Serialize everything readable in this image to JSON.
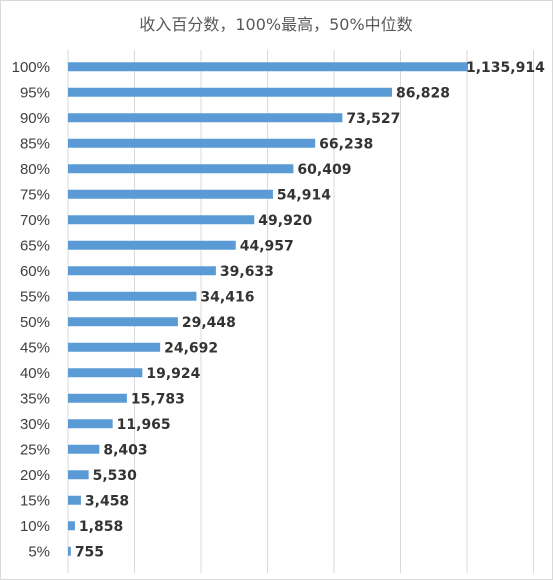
{
  "chart_data": {
    "type": "bar",
    "orientation": "horizontal",
    "title": "收入百分数，100%最高，50%中位数",
    "xlabel": "",
    "ylabel": "",
    "categories": [
      "5%",
      "10%",
      "15%",
      "20%",
      "25%",
      "30%",
      "35%",
      "40%",
      "45%",
      "50%",
      "55%",
      "60%",
      "65%",
      "70%",
      "75%",
      "80%",
      "85%",
      "90%",
      "95%",
      "100%"
    ],
    "values": [
      755,
      1858,
      3458,
      5530,
      8403,
      11965,
      15783,
      19924,
      24692,
      29448,
      34416,
      39633,
      44957,
      49920,
      54914,
      60409,
      66238,
      73527,
      86828,
      1135914
    ],
    "value_labels": [
      "755",
      "1,858",
      "3,458",
      "5,530",
      "8,403",
      "11,965",
      "15,783",
      "19,924",
      "24,692",
      "29,448",
      "34,416",
      "39,633",
      "44,957",
      "49,920",
      "54,914",
      "60,409",
      "66,238",
      "73,527",
      "86,828",
      "1,135,914"
    ],
    "axis_break": true,
    "grid": true,
    "legend": "none",
    "bar_color": "#5b9bd5"
  }
}
